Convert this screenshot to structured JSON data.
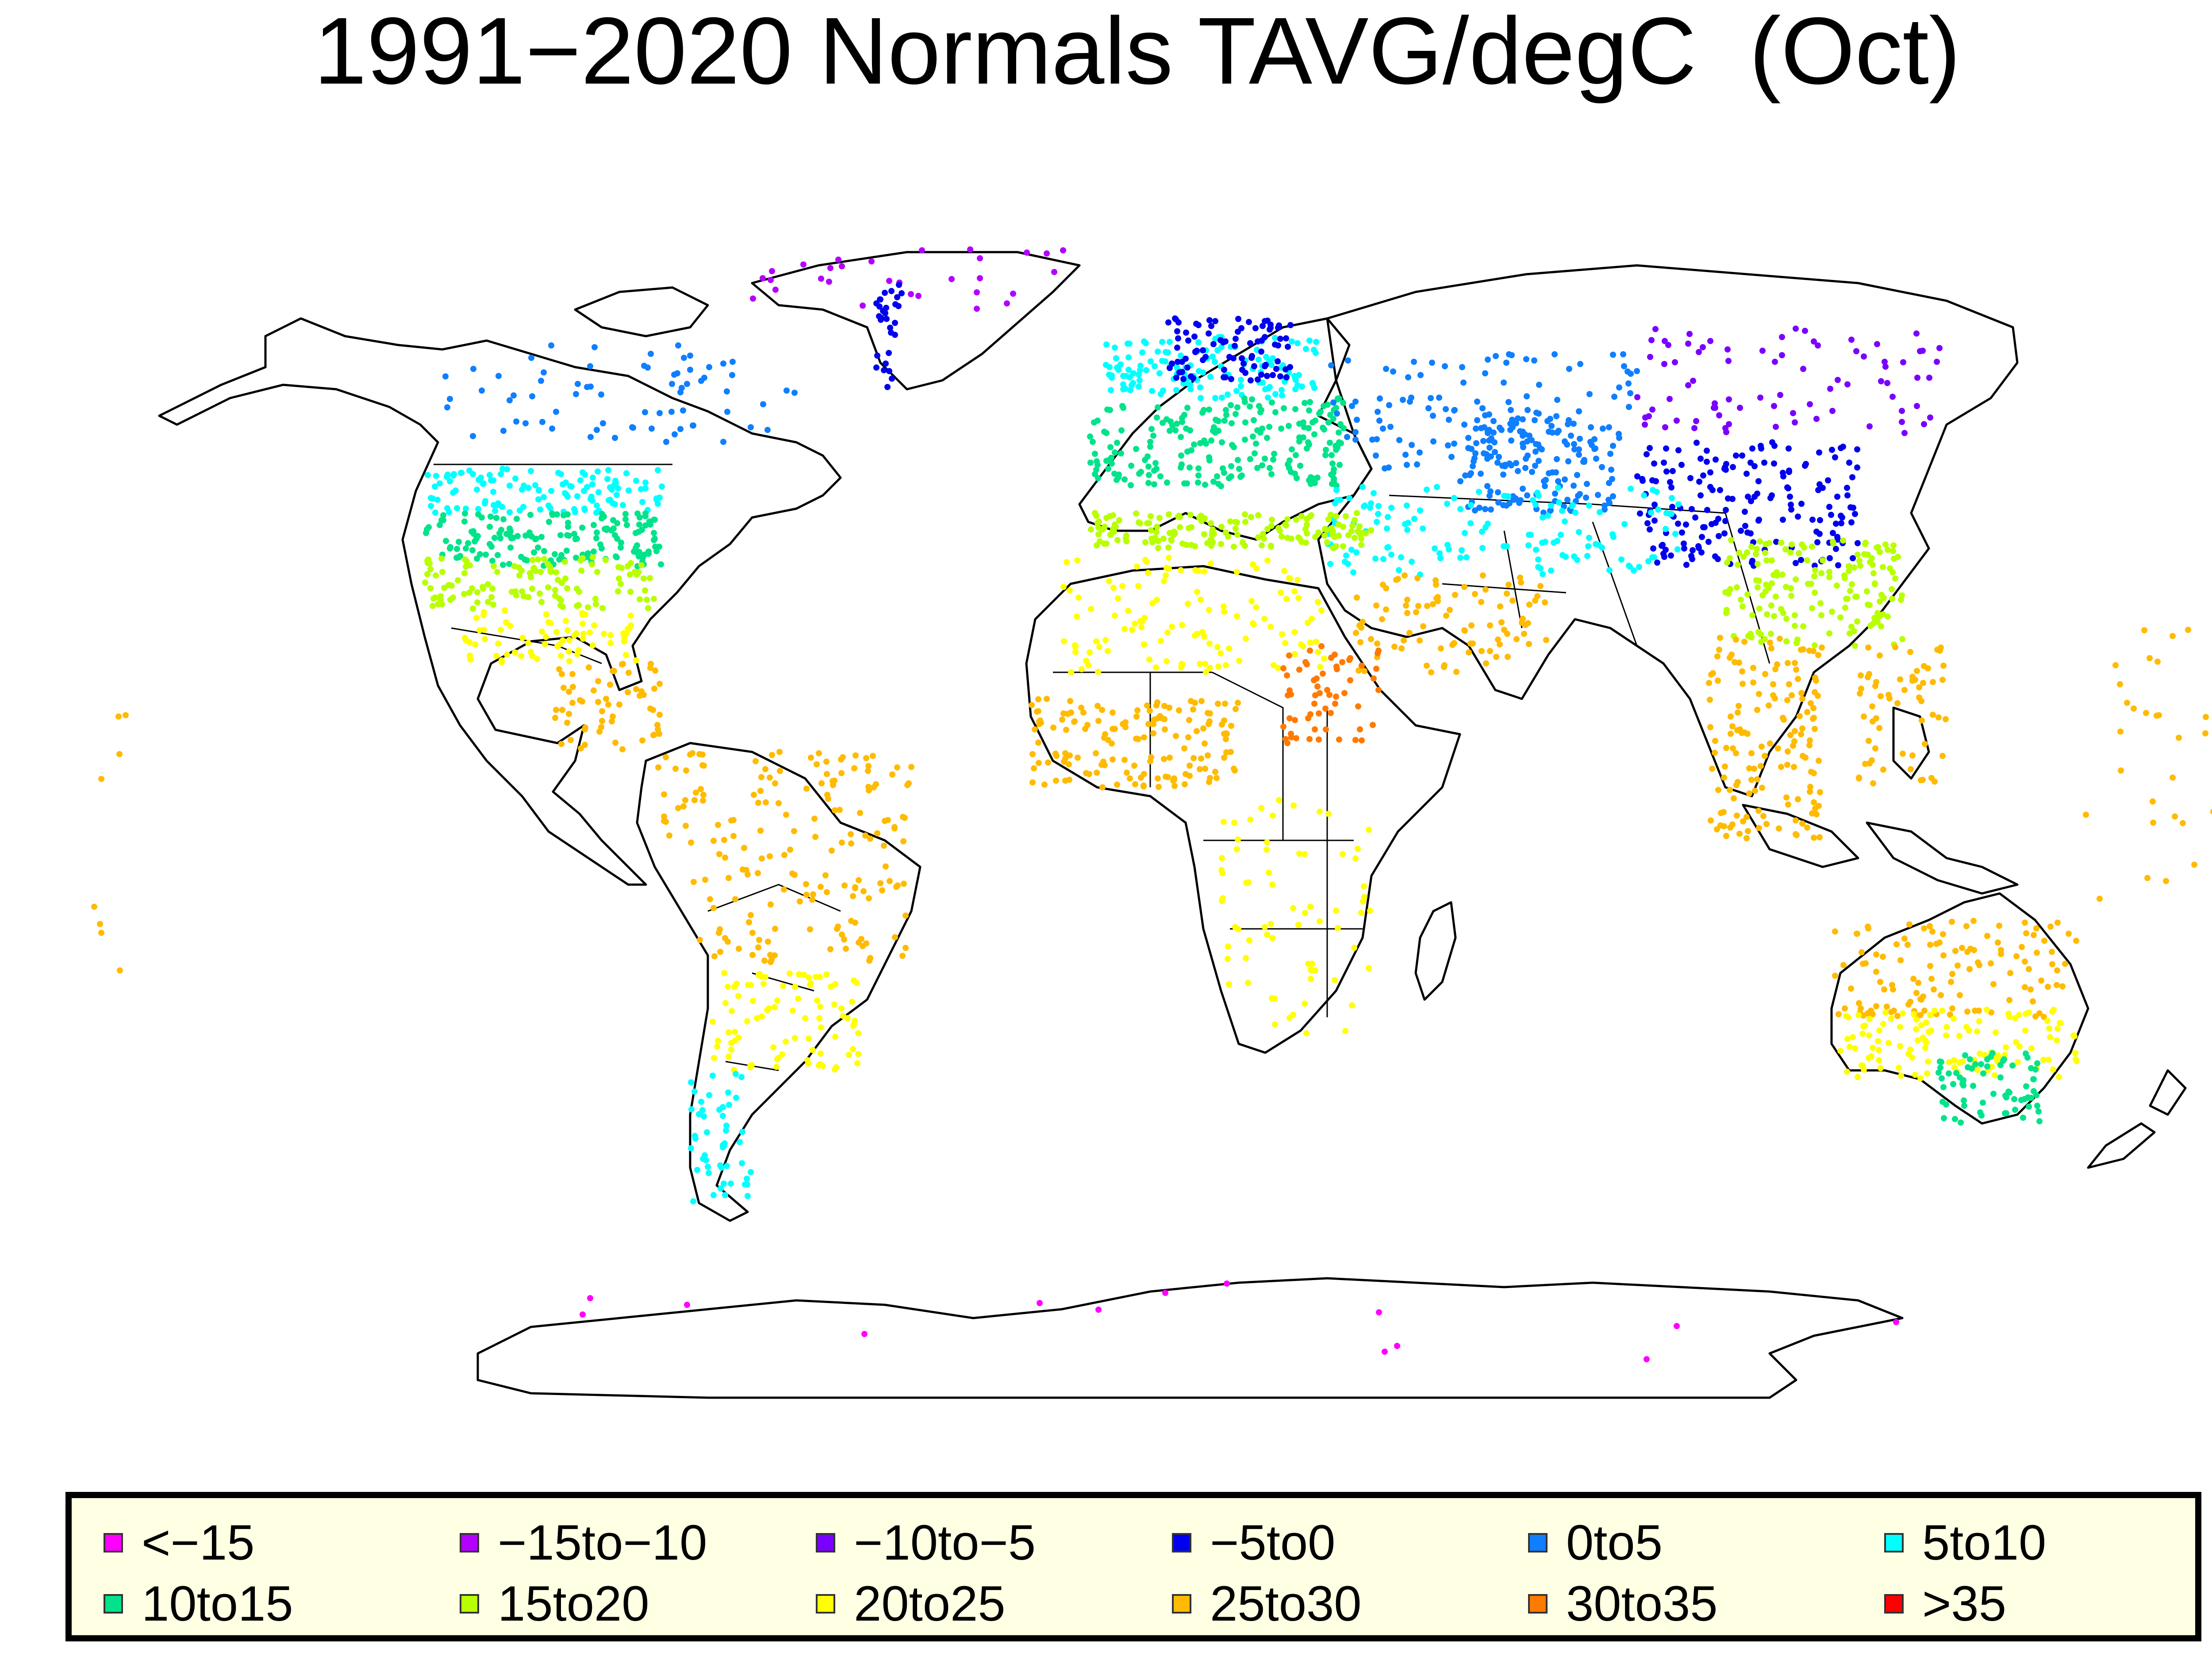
{
  "title": "1991−2020 Normals TAVG/degC  (Oct)",
  "map": {
    "projection": "equirectangular",
    "coastlines": true,
    "country_borders": true
  },
  "legend": {
    "items": [
      {
        "label": "<−15",
        "color": "#ff00ff"
      },
      {
        "label": "−15to−10",
        "color": "#b300ff"
      },
      {
        "label": "−10to−5",
        "color": "#7a00ff"
      },
      {
        "label": "−5to0",
        "color": "#0000ee"
      },
      {
        "label": "0to5",
        "color": "#0f7fff"
      },
      {
        "label": "5to10",
        "color": "#00ffff"
      },
      {
        "label": "10to15",
        "color": "#00e38a"
      },
      {
        "label": "15to20",
        "color": "#b8ff00"
      },
      {
        "label": "20to25",
        "color": "#ffff00"
      },
      {
        "label": "25to30",
        "color": "#ffbb00"
      },
      {
        "label": "30to35",
        "color": "#ff7a00"
      },
      {
        "label": ">35",
        "color": "#ff0000"
      }
    ]
  }
}
